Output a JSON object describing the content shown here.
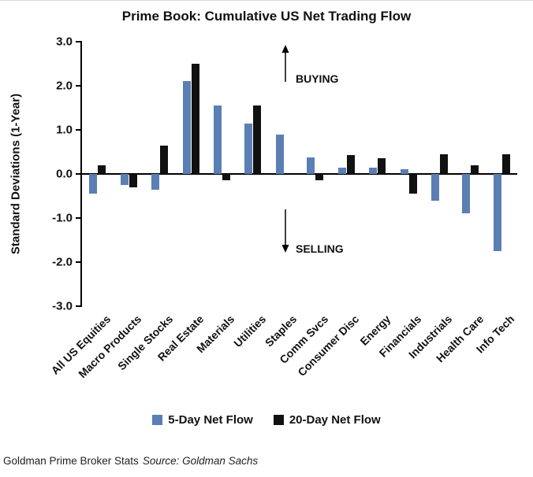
{
  "title": "Prime Book: Cumulative US Net Trading Flow",
  "annotations": {
    "buying": "BUYING",
    "selling": "SELLING"
  },
  "footer": {
    "left": "Goldman Prime Broker Stats",
    "source": "Source: Goldman Sachs"
  },
  "colors": {
    "five_day": "#5b7eb5",
    "twenty_day": "#111111",
    "axis": "#000000"
  },
  "chart_data": {
    "type": "bar",
    "title": "Prime Book: Cumulative US Net Trading Flow",
    "ylabel": "Standard Deviations (1-Year)",
    "xlabel": "",
    "ylim": [
      -3,
      3
    ],
    "ytick_labels": [
      "3.0",
      "2.0",
      "1.0",
      "0.0",
      "-1.0",
      "-2.0",
      "-3.0"
    ],
    "grid": false,
    "legend_position": "bottom",
    "categories": [
      "All US Equities",
      "Macro Products",
      "Single Stocks",
      "Real Estate",
      "Materials",
      "Utilities",
      "Staples",
      "Comm Svcs",
      "Consumer Disc",
      "Energy",
      "Financials",
      "Industrials",
      "Health Care",
      "Info Tech"
    ],
    "series": [
      {
        "name": "5-Day Net Flow",
        "color": "#5b7eb5",
        "values": [
          -0.45,
          -0.25,
          -0.35,
          2.1,
          1.55,
          1.15,
          0.9,
          0.38,
          0.15,
          0.15,
          0.1,
          -0.6,
          -0.9,
          -1.75
        ]
      },
      {
        "name": "20-Day Net Flow",
        "color": "#111111",
        "values": [
          0.2,
          -0.3,
          0.65,
          2.5,
          -0.15,
          1.55,
          0.0,
          -0.15,
          0.42,
          0.35,
          -0.45,
          0.45,
          0.2,
          0.45
        ]
      }
    ]
  }
}
